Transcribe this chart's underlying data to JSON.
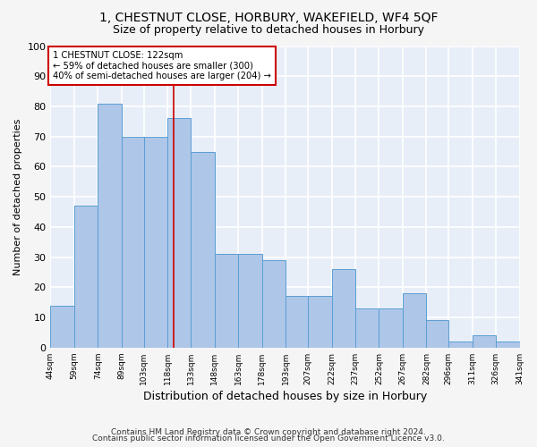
{
  "title": "1, CHESTNUT CLOSE, HORBURY, WAKEFIELD, WF4 5QF",
  "subtitle": "Size of property relative to detached houses in Horbury",
  "xlabel": "Distribution of detached houses by size in Horbury",
  "ylabel": "Number of detached properties",
  "bin_edges": [
    44,
    59,
    74,
    89,
    103,
    118,
    133,
    148,
    163,
    178,
    193,
    207,
    222,
    237,
    252,
    267,
    282,
    296,
    311,
    326,
    341
  ],
  "bin_labels": [
    "44sqm",
    "59sqm",
    "74sqm",
    "89sqm",
    "103sqm",
    "118sqm",
    "133sqm",
    "148sqm",
    "163sqm",
    "178sqm",
    "193sqm",
    "207sqm",
    "222sqm",
    "237sqm",
    "252sqm",
    "267sqm",
    "282sqm",
    "296sqm",
    "311sqm",
    "326sqm",
    "341sqm"
  ],
  "bar_heights": [
    14,
    47,
    81,
    70,
    70,
    76,
    65,
    31,
    31,
    29,
    17,
    17,
    26,
    13,
    13,
    18,
    9,
    2,
    4,
    2
  ],
  "bar_color": "#aec6e8",
  "bar_edge_color": "#5a9fd4",
  "bg_color": "#e8eef8",
  "grid_color": "#ffffff",
  "vline_x": 122,
  "vline_color": "#cc0000",
  "annotation_text": "1 CHESTNUT CLOSE: 122sqm\n← 59% of detached houses are smaller (300)\n40% of semi-detached houses are larger (204) →",
  "annotation_box_color": "#ffffff",
  "annotation_border_color": "#cc0000",
  "ylim": [
    0,
    100
  ],
  "yticks": [
    0,
    10,
    20,
    30,
    40,
    50,
    60,
    70,
    80,
    90,
    100
  ],
  "footer_line1": "Contains HM Land Registry data © Crown copyright and database right 2024.",
  "footer_line2": "Contains public sector information licensed under the Open Government Licence v3.0.",
  "title_fontsize": 10,
  "subtitle_fontsize": 9,
  "fig_bg": "#f5f5f5"
}
